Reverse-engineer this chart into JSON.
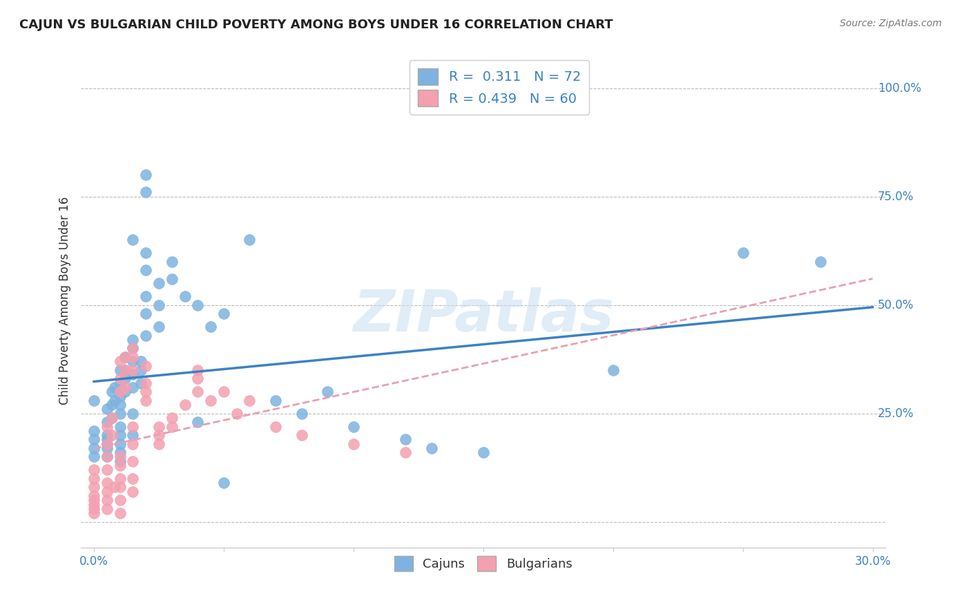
{
  "title": "CAJUN VS BULGARIAN CHILD POVERTY AMONG BOYS UNDER 16 CORRELATION CHART",
  "source": "Source: ZipAtlas.com",
  "ylabel": "Child Poverty Among Boys Under 16",
  "cajun_R": "0.311",
  "cajun_N": "72",
  "bulgarian_R": "0.439",
  "bulgarian_N": "60",
  "cajun_color": "#7EB3E0",
  "bulgarian_color": "#F4A0B0",
  "cajun_line_color": "#3B82C4",
  "bulgarian_line_color": "#E8A0B0",
  "watermark": "ZIPatlas",
  "cajun_points": [
    [
      0.0,
      0.28
    ],
    [
      0.0,
      0.21
    ],
    [
      0.0,
      0.19
    ],
    [
      0.0,
      0.17
    ],
    [
      0.0,
      0.15
    ],
    [
      0.005,
      0.26
    ],
    [
      0.005,
      0.23
    ],
    [
      0.005,
      0.2
    ],
    [
      0.005,
      0.19
    ],
    [
      0.005,
      0.18
    ],
    [
      0.005,
      0.17
    ],
    [
      0.005,
      0.15
    ],
    [
      0.007,
      0.3
    ],
    [
      0.007,
      0.27
    ],
    [
      0.007,
      0.24
    ],
    [
      0.008,
      0.31
    ],
    [
      0.008,
      0.28
    ],
    [
      0.01,
      0.35
    ],
    [
      0.01,
      0.32
    ],
    [
      0.01,
      0.3
    ],
    [
      0.01,
      0.29
    ],
    [
      0.01,
      0.27
    ],
    [
      0.01,
      0.25
    ],
    [
      0.01,
      0.22
    ],
    [
      0.01,
      0.2
    ],
    [
      0.01,
      0.18
    ],
    [
      0.01,
      0.16
    ],
    [
      0.01,
      0.14
    ],
    [
      0.012,
      0.38
    ],
    [
      0.012,
      0.35
    ],
    [
      0.012,
      0.33
    ],
    [
      0.012,
      0.3
    ],
    [
      0.015,
      0.65
    ],
    [
      0.015,
      0.42
    ],
    [
      0.015,
      0.4
    ],
    [
      0.015,
      0.37
    ],
    [
      0.015,
      0.34
    ],
    [
      0.015,
      0.31
    ],
    [
      0.015,
      0.25
    ],
    [
      0.015,
      0.2
    ],
    [
      0.018,
      0.37
    ],
    [
      0.018,
      0.35
    ],
    [
      0.018,
      0.32
    ],
    [
      0.02,
      0.8
    ],
    [
      0.02,
      0.76
    ],
    [
      0.02,
      0.62
    ],
    [
      0.02,
      0.58
    ],
    [
      0.02,
      0.52
    ],
    [
      0.02,
      0.48
    ],
    [
      0.02,
      0.43
    ],
    [
      0.025,
      0.55
    ],
    [
      0.025,
      0.5
    ],
    [
      0.025,
      0.45
    ],
    [
      0.03,
      0.6
    ],
    [
      0.03,
      0.56
    ],
    [
      0.035,
      0.52
    ],
    [
      0.04,
      0.5
    ],
    [
      0.04,
      0.23
    ],
    [
      0.045,
      0.45
    ],
    [
      0.05,
      0.48
    ],
    [
      0.06,
      0.65
    ],
    [
      0.07,
      0.28
    ],
    [
      0.08,
      0.25
    ],
    [
      0.09,
      0.3
    ],
    [
      0.1,
      0.22
    ],
    [
      0.12,
      0.19
    ],
    [
      0.13,
      0.17
    ],
    [
      0.15,
      0.16
    ],
    [
      0.2,
      0.35
    ],
    [
      0.25,
      0.62
    ],
    [
      0.28,
      0.6
    ],
    [
      0.05,
      0.09
    ]
  ],
  "bulgarian_points": [
    [
      0.0,
      0.12
    ],
    [
      0.0,
      0.1
    ],
    [
      0.0,
      0.08
    ],
    [
      0.0,
      0.06
    ],
    [
      0.0,
      0.05
    ],
    [
      0.0,
      0.04
    ],
    [
      0.0,
      0.03
    ],
    [
      0.0,
      0.02
    ],
    [
      0.005,
      0.22
    ],
    [
      0.005,
      0.18
    ],
    [
      0.005,
      0.15
    ],
    [
      0.005,
      0.12
    ],
    [
      0.005,
      0.09
    ],
    [
      0.005,
      0.07
    ],
    [
      0.005,
      0.05
    ],
    [
      0.005,
      0.03
    ],
    [
      0.007,
      0.24
    ],
    [
      0.007,
      0.2
    ],
    [
      0.008,
      0.08
    ],
    [
      0.01,
      0.37
    ],
    [
      0.01,
      0.33
    ],
    [
      0.01,
      0.3
    ],
    [
      0.01,
      0.15
    ],
    [
      0.01,
      0.13
    ],
    [
      0.01,
      0.1
    ],
    [
      0.01,
      0.08
    ],
    [
      0.01,
      0.05
    ],
    [
      0.01,
      0.02
    ],
    [
      0.012,
      0.38
    ],
    [
      0.012,
      0.35
    ],
    [
      0.012,
      0.31
    ],
    [
      0.015,
      0.4
    ],
    [
      0.015,
      0.38
    ],
    [
      0.015,
      0.35
    ],
    [
      0.015,
      0.22
    ],
    [
      0.015,
      0.18
    ],
    [
      0.015,
      0.14
    ],
    [
      0.015,
      0.1
    ],
    [
      0.015,
      0.07
    ],
    [
      0.02,
      0.36
    ],
    [
      0.02,
      0.32
    ],
    [
      0.02,
      0.3
    ],
    [
      0.02,
      0.28
    ],
    [
      0.025,
      0.22
    ],
    [
      0.025,
      0.2
    ],
    [
      0.025,
      0.18
    ],
    [
      0.03,
      0.24
    ],
    [
      0.03,
      0.22
    ],
    [
      0.035,
      0.27
    ],
    [
      0.04,
      0.35
    ],
    [
      0.04,
      0.33
    ],
    [
      0.04,
      0.3
    ],
    [
      0.045,
      0.28
    ],
    [
      0.05,
      0.3
    ],
    [
      0.055,
      0.25
    ],
    [
      0.06,
      0.28
    ],
    [
      0.07,
      0.22
    ],
    [
      0.08,
      0.2
    ],
    [
      0.1,
      0.18
    ],
    [
      0.12,
      0.16
    ]
  ]
}
